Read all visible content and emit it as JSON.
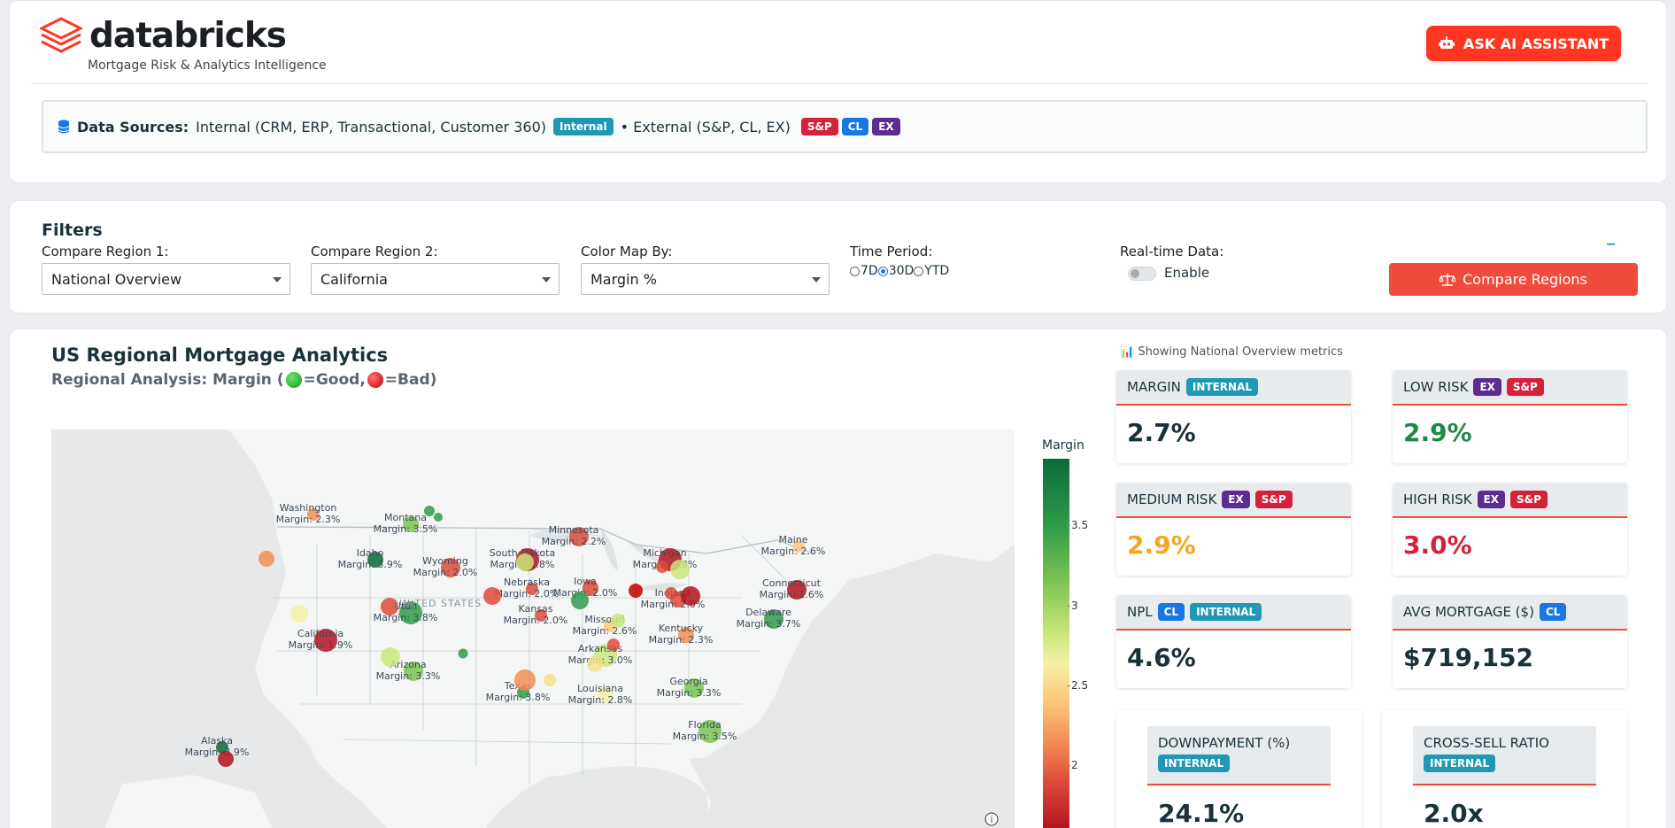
{
  "header": {
    "brand": "databricks",
    "tagline": "Mortgage Risk & Analytics Intelligence",
    "ai_button": "ASK AI ASSISTANT",
    "sources_label": "Data Sources:",
    "sources_internal": "Internal (CRM, ERP, Transactional, Customer 360)",
    "badge_internal": "Internal",
    "sources_external": "• External (S&P, CL, EX)",
    "badge_sp": "S&P",
    "badge_cl": "CL",
    "badge_ex": "EX"
  },
  "filters": {
    "title": "Filters",
    "region1_label": "Compare Region 1:",
    "region1_value": "National Overview",
    "region2_label": "Compare Region 2:",
    "region2_value": "California",
    "colormap_label": "Color Map By:",
    "colormap_value": "Margin %",
    "time_label": "Time Period:",
    "time_options": [
      "7D",
      "30D",
      "YTD"
    ],
    "time_selected": "30D",
    "realtime_label": "Real-time Data:",
    "realtime_toggle": "Enable",
    "collapse": "–",
    "compare_button": "Compare Regions"
  },
  "main": {
    "title": "US Regional Mortgage Analytics",
    "subtitle_prefix": "Regional Analysis: Margin (",
    "subtitle_good": "=Good, ",
    "subtitle_bad": "=Bad)",
    "map_country_label": "UNITED STATES",
    "map_states": [
      {
        "name": "Washington",
        "value": "Margin: 2.3%"
      },
      {
        "name": "Montana",
        "value": "Margin: 3.5%"
      },
      {
        "name": "Minnesota",
        "value": "Margin: 2.2%"
      },
      {
        "name": "Michigan",
        "value": "Margin: 1.8%"
      },
      {
        "name": "Maine",
        "value": "Margin: 2.6%"
      },
      {
        "name": "Idaho",
        "value": "Margin: 3.9%"
      },
      {
        "name": "Wyoming",
        "value": "Margin: 2.0%"
      },
      {
        "name": "South Dakota",
        "value": "Margin: 1.8%"
      },
      {
        "name": "Nebraska",
        "value": "Margin: 2.0%"
      },
      {
        "name": "Iowa",
        "value": "Margin: 2.0%"
      },
      {
        "name": "Connecticut",
        "value": "Margin: 1.6%"
      },
      {
        "name": "Utah",
        "value": "Margin: 3.8%"
      },
      {
        "name": "Kansas",
        "value": "Margin: 2.0%"
      },
      {
        "name": "Indiana",
        "value": "Margin: 2.0%"
      },
      {
        "name": "Delaware",
        "value": "Margin: 3.7%"
      },
      {
        "name": "California",
        "value": "Margin: 1.9%"
      },
      {
        "name": "Missouri",
        "value": "Margin: 2.6%"
      },
      {
        "name": "Kentucky",
        "value": "Margin: 2.3%"
      },
      {
        "name": "Arizona",
        "value": "Margin: 3.3%"
      },
      {
        "name": "Arkansas",
        "value": "Margin: 3.0%"
      },
      {
        "name": "Texas",
        "value": "Margin: 3.8%"
      },
      {
        "name": "Louisiana",
        "value": "Margin: 2.8%"
      },
      {
        "name": "Georgia",
        "value": "Margin: 3.3%"
      },
      {
        "name": "Florida",
        "value": "Margin: 3.5%"
      },
      {
        "name": "Alaska",
        "value": "Margin: 3.9%"
      }
    ],
    "colorbar_title": "Margin",
    "colorbar_ticks": [
      "3.5",
      "3",
      "2.5",
      "2"
    ],
    "showing": "Showing National Overview metrics"
  },
  "kpis": {
    "margin": {
      "label": "MARGIN",
      "badge": "INTERNAL",
      "value": "2.7%"
    },
    "low_risk": {
      "label": "LOW RISK",
      "badge1": "EX",
      "badge2": "S&P",
      "value": "2.9%"
    },
    "medium_risk": {
      "label": "MEDIUM RISK",
      "badge1": "EX",
      "badge2": "S&P",
      "value": "2.9%"
    },
    "high_risk": {
      "label": "HIGH RISK",
      "badge1": "EX",
      "badge2": "S&P",
      "value": "3.0%"
    },
    "npl": {
      "label": "NPL",
      "badge1": "CL",
      "badge2": "INTERNAL",
      "value": "4.6%"
    },
    "avg_mortgage": {
      "label": "AVG MORTGAGE ($)",
      "badge": "CL",
      "value": "$719,152"
    },
    "downpayment": {
      "label": "DOWNPAYMENT (%)",
      "badge": "INTERNAL",
      "value": "24.1%"
    },
    "cross_sell": {
      "label": "CROSS-SELL RATIO",
      "badge": "INTERNAL",
      "value": "2.0x"
    }
  },
  "colors": {
    "accent": "#ff3621",
    "internal": "#1f98b5",
    "sp": "#d6213a",
    "cl": "#1877e4",
    "ex": "#5c2d91"
  }
}
